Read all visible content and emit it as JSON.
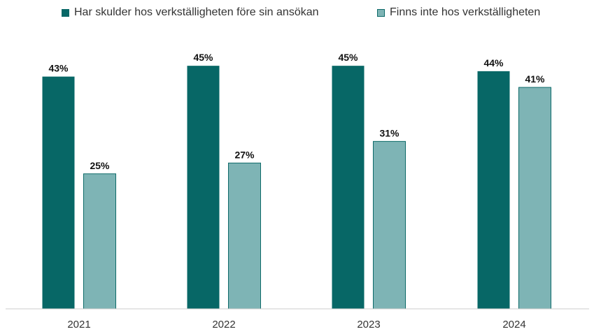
{
  "chart_data": {
    "type": "bar",
    "categories": [
      "2021",
      "2022",
      "2023",
      "2024"
    ],
    "series": [
      {
        "name": "Har skulder hos verkställigheten före sin ansökan",
        "values": [
          43,
          45,
          45,
          44
        ],
        "value_labels": [
          "43%",
          "45%",
          "45%",
          "44%"
        ],
        "color": "#076766"
      },
      {
        "name": "Finns inte hos verkställigheten",
        "values": [
          25,
          27,
          31,
          41
        ],
        "value_labels": [
          "25%",
          "27%",
          "31%",
          "41%"
        ],
        "color": "#7eb4b5"
      }
    ],
    "ylim": [
      0,
      45
    ],
    "grid": false,
    "legend_position": "top"
  },
  "colors": {
    "series1": "#076766",
    "series2": "#7eb4b5",
    "series2_border": "#0d6a69",
    "axis": "#cccccc"
  }
}
